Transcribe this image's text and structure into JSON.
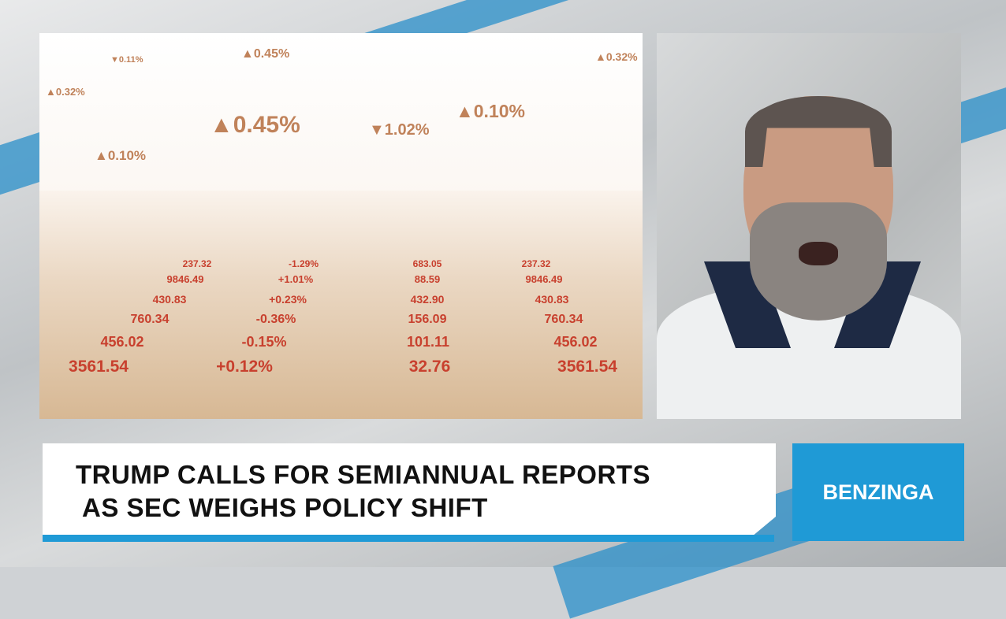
{
  "lower_third": {
    "headline_line1": "TRUMP CALLS FOR SEMIANNUAL REPORTS",
    "headline_line2": "AS SEC WEIGHS POLICY SHIFT",
    "brand": "BENZINGA",
    "brand_color": "#1f9ad6"
  },
  "stock_image": {
    "percentages": [
      "▼0.11%",
      "▲0.45%",
      "▲0.32%",
      "▲0.32%",
      "▲0.45%",
      "▼1.02%",
      "▲0.10%",
      "▲0.10%"
    ],
    "cells": [
      "3561.54",
      "+0.12%",
      "32.76",
      "3561.54",
      "456.02",
      "-0.15%",
      "101.11",
      "456.02",
      "760.34",
      "-0.36%",
      "156.09",
      "760.34",
      "430.83",
      "+0.23%",
      "432.90",
      "430.83",
      "9846.49",
      "+1.01%",
      "88.59",
      "9846.49",
      "237.32",
      "-1.29%",
      "683.05",
      "237.32"
    ]
  }
}
